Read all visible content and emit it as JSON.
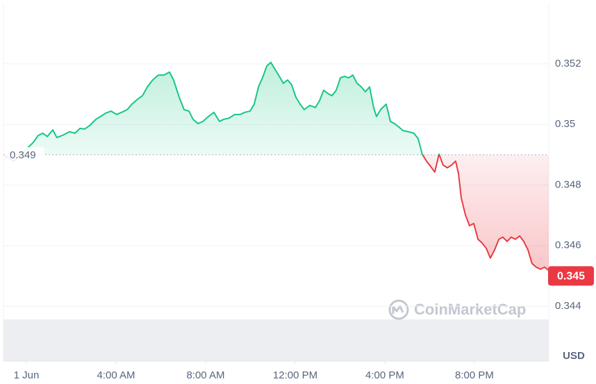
{
  "chart_data": {
    "type": "line",
    "x": [
      -0.93,
      -0.56,
      0.31,
      0.53,
      0.74,
      0.93,
      1.18,
      1.36,
      1.61,
      1.92,
      2.17,
      2.39,
      2.6,
      2.85,
      3.1,
      3.35,
      3.53,
      3.78,
      4.03,
      4.25,
      4.5,
      4.71,
      4.96,
      5.18,
      5.4,
      5.64,
      5.89,
      6.14,
      6.39,
      6.57,
      6.82,
      7.04,
      7.26,
      7.44,
      7.66,
      7.88,
      8.12,
      8.37,
      8.62,
      8.81,
      9.05,
      9.3,
      9.55,
      9.74,
      9.98,
      10.17,
      10.36,
      10.54,
      10.73,
      10.91,
      11.1,
      11.29,
      11.47,
      11.66,
      11.84,
      12.03,
      12.22,
      12.4,
      12.65,
      12.9,
      13.09,
      13.27,
      13.46,
      13.64,
      13.83,
      14.02,
      14.2,
      14.39,
      14.57,
      14.76,
      14.95,
      15.13,
      15.32,
      15.5,
      15.63,
      15.81,
      16.06,
      16.25,
      16.43,
      16.62,
      16.81,
      17.05,
      17.3,
      17.49,
      17.67,
      17.86,
      18.05,
      18.23,
      18.42,
      18.6,
      18.79,
      18.98,
      19.16,
      19.29,
      19.41,
      19.6,
      19.78,
      19.97,
      20.16,
      20.34,
      20.53,
      20.71,
      20.9,
      21.09,
      21.27,
      21.46,
      21.64,
      21.83,
      22.02,
      22.2,
      22.39,
      22.57,
      22.76,
      22.95,
      23.13,
      23.32
    ],
    "values": [
      0.34895,
      0.34879,
      0.34941,
      0.34964,
      0.34971,
      0.3496,
      0.34982,
      0.34957,
      0.34964,
      0.34976,
      0.34971,
      0.34987,
      0.34985,
      0.34998,
      0.35017,
      0.35028,
      0.35037,
      0.35044,
      0.35033,
      0.3504,
      0.35049,
      0.35067,
      0.35083,
      0.35095,
      0.35124,
      0.35147,
      0.35163,
      0.35163,
      0.35173,
      0.35147,
      0.3509,
      0.35049,
      0.35044,
      0.35017,
      0.35003,
      0.3501,
      0.35026,
      0.3504,
      0.3501,
      0.35017,
      0.35021,
      0.35033,
      0.35033,
      0.3504,
      0.35044,
      0.35067,
      0.35124,
      0.35154,
      0.35193,
      0.35205,
      0.35182,
      0.35159,
      0.35136,
      0.35147,
      0.35131,
      0.3509,
      0.35067,
      0.35049,
      0.35063,
      0.35056,
      0.35079,
      0.35113,
      0.35102,
      0.35095,
      0.35113,
      0.35154,
      0.35159,
      0.35154,
      0.35163,
      0.35136,
      0.35124,
      0.35108,
      0.35124,
      0.35056,
      0.35026,
      0.35049,
      0.35067,
      0.3501,
      0.35003,
      0.34992,
      0.3498,
      0.34976,
      0.34971,
      0.34953,
      0.34902,
      0.34879,
      0.34861,
      0.34843,
      0.34902,
      0.34866,
      0.34857,
      0.34866,
      0.34879,
      0.34838,
      0.34758,
      0.34701,
      0.34666,
      0.34673,
      0.34621,
      0.34609,
      0.34591,
      0.34559,
      0.34586,
      0.34621,
      0.34628,
      0.34614,
      0.34628,
      0.34621,
      0.34632,
      0.34614,
      0.34586,
      0.34541,
      0.34529,
      0.34522,
      0.34529,
      0.34518
    ],
    "baseline": 0.349,
    "current_price": 0.345,
    "up_color": "#16c784",
    "down_color": "#ea3943",
    "xlim": [
      -1,
      23.3
    ],
    "ylim": [
      0.344,
      0.354
    ],
    "xticks": [
      {
        "value": 0,
        "label": "1 Jun"
      },
      {
        "value": 4,
        "label": "4:00 AM"
      },
      {
        "value": 8,
        "label": "8:00 AM"
      },
      {
        "value": 12,
        "label": "12:00 PM"
      },
      {
        "value": 16,
        "label": "4:00 PM"
      },
      {
        "value": 20,
        "label": "8:00 PM"
      }
    ],
    "yticks": [
      0.344,
      0.346,
      0.348,
      0.35,
      0.352
    ],
    "grid": true,
    "currency": "USD",
    "watermark": "CoinMarketCap"
  }
}
